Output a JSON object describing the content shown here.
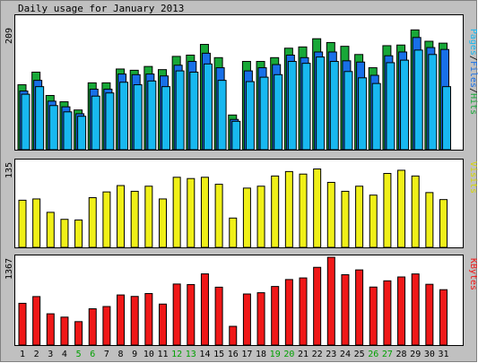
{
  "chart_data": [
    {
      "type": "bar",
      "title": "Daily usage for January 2013",
      "ylabel": "Pages/Files/Hits",
      "ylabel_parts": [
        "Pages",
        "/",
        "Files",
        "/",
        "Hits"
      ],
      "ymax_label": "209",
      "ylim": [
        0,
        209
      ],
      "categories": [
        "1",
        "2",
        "3",
        "4",
        "5",
        "6",
        "7",
        "8",
        "9",
        "10",
        "11",
        "12",
        "13",
        "14",
        "15",
        "16",
        "17",
        "18",
        "19",
        "20",
        "21",
        "22",
        "23",
        "24",
        "25",
        "26",
        "27",
        "28",
        "29",
        "30",
        "31"
      ],
      "weekend_days": [
        "5",
        "6",
        "12",
        "13",
        "19",
        "20",
        "26",
        "27"
      ],
      "series": [
        {
          "name": "Hits",
          "color": "#18a838",
          "values": [
            103,
            123,
            86,
            76,
            63,
            106,
            106,
            128,
            126,
            132,
            127,
            148,
            150,
            167,
            146,
            55,
            140,
            140,
            146,
            161,
            163,
            176,
            170,
            164,
            151,
            130,
            165,
            166,
            190,
            172,
            169
          ]
        },
        {
          "name": "Files",
          "color": "#1870e8",
          "values": [
            93,
            110,
            77,
            68,
            57,
            96,
            96,
            120,
            119,
            120,
            117,
            134,
            140,
            153,
            130,
            48,
            125,
            130,
            135,
            150,
            146,
            155,
            155,
            141,
            139,
            118,
            149,
            155,
            178,
            162,
            159
          ]
        },
        {
          "name": "Pages",
          "color": "#18b8f0",
          "values": [
            88,
            100,
            70,
            60,
            53,
            85,
            90,
            107,
            103,
            109,
            100,
            125,
            123,
            136,
            110,
            45,
            108,
            115,
            119,
            140,
            137,
            147,
            140,
            124,
            114,
            105,
            138,
            142,
            158,
            151,
            100
          ]
        }
      ]
    },
    {
      "type": "bar",
      "ylabel": "Visits",
      "ymax_label": "135",
      "ylim": [
        0,
        135
      ],
      "categories": [
        "1",
        "2",
        "3",
        "4",
        "5",
        "6",
        "7",
        "8",
        "9",
        "10",
        "11",
        "12",
        "13",
        "14",
        "15",
        "16",
        "17",
        "18",
        "19",
        "20",
        "21",
        "22",
        "23",
        "24",
        "25",
        "26",
        "27",
        "28",
        "29",
        "30",
        "31"
      ],
      "series": [
        {
          "name": "Visits",
          "color": "#f0f018",
          "values": [
            74,
            76,
            55,
            44,
            43,
            78,
            87,
            97,
            88,
            96,
            76,
            110,
            108,
            110,
            99,
            46,
            93,
            96,
            112,
            119,
            115,
            123,
            102,
            88,
            96,
            82,
            116,
            121,
            112,
            86,
            75
          ]
        }
      ]
    },
    {
      "type": "bar",
      "ylabel": "KBytes",
      "ymax_label": "1367",
      "ylim": [
        0,
        1367
      ],
      "categories": [
        "1",
        "2",
        "3",
        "4",
        "5",
        "6",
        "7",
        "8",
        "9",
        "10",
        "11",
        "12",
        "13",
        "14",
        "15",
        "16",
        "17",
        "18",
        "19",
        "20",
        "21",
        "22",
        "23",
        "24",
        "25",
        "26",
        "27",
        "28",
        "29",
        "30",
        "31"
      ],
      "series": [
        {
          "name": "KBytes",
          "color": "#f01818",
          "values": [
            650,
            755,
            487,
            435,
            365,
            565,
            600,
            780,
            757,
            802,
            638,
            950,
            942,
            1108,
            901,
            292,
            795,
            815,
            912,
            1020,
            1045,
            1210,
            1367,
            1095,
            1170,
            903,
            1000,
            1060,
            1107,
            946,
            862
          ]
        }
      ]
    }
  ],
  "colors": {
    "background": "#ffffff",
    "panel": "#c0c0c0",
    "weekday_label": "#000000",
    "weekend_label": "#00a000",
    "bar_outline": "#000000"
  }
}
